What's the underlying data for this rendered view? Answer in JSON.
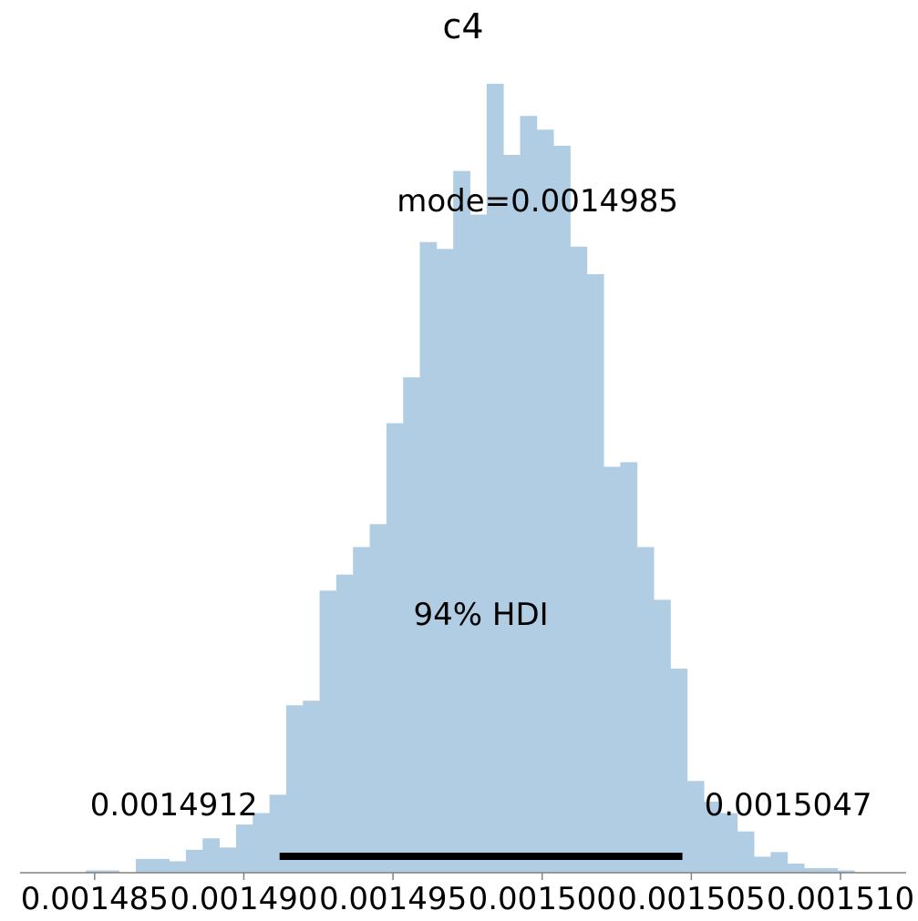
{
  "chart_data": {
    "type": "bar",
    "title": "c4",
    "xlabel": "",
    "ylabel": "",
    "xlim": [
      0.0014825,
      0.0015122
    ],
    "x_ticks": [
      0.001485,
      0.00149,
      0.001495,
      0.0015,
      0.001505,
      0.00151
    ],
    "x_tick_labels": [
      "0.001485",
      "0.001490",
      "0.001495",
      "0.001500",
      "0.001505",
      "0.001510"
    ],
    "grid": false,
    "bar_color": "#b0cde3",
    "hdi_color": "#000000",
    "bins": {
      "start": 0.0014847,
      "width": 5.6e-07,
      "counts": [
        1,
        1,
        0,
        6,
        6,
        5,
        10,
        15,
        11,
        21,
        26,
        34,
        73,
        75,
        123,
        130,
        142,
        152,
        196,
        216,
        275,
        272,
        306,
        287,
        344,
        313,
        330,
        324,
        317,
        273,
        261,
        177,
        179,
        142,
        119,
        89,
        40,
        31,
        26,
        18,
        7,
        9,
        4,
        2,
        2,
        1
      ]
    },
    "mode": {
      "value": 0.0014985,
      "label": "mode=0.0014985"
    },
    "hdi": {
      "low": 0.0014912,
      "high": 0.0015047,
      "label": "94% HDI",
      "low_label": "0.0014912",
      "high_label": "0.0015047"
    }
  }
}
